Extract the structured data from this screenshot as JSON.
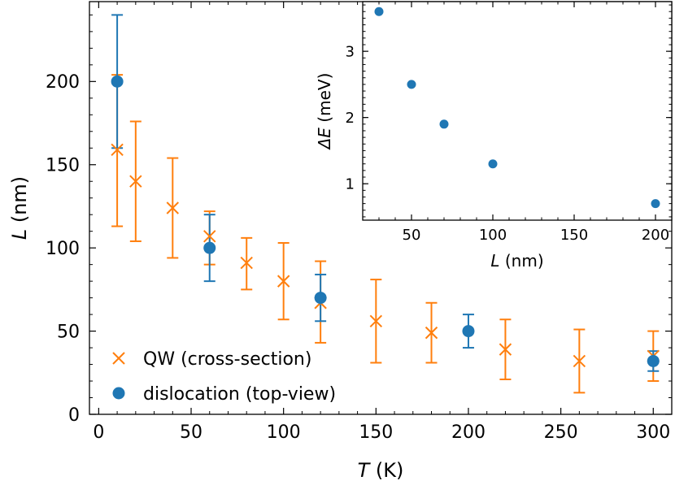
{
  "chart_data": [
    {
      "type": "scatter",
      "xlabel": {
        "symbol": "T",
        "unit": "(K)"
      },
      "ylabel": {
        "symbol": "L",
        "unit": "(nm)"
      },
      "xlim": [
        -5,
        310
      ],
      "ylim": [
        0,
        248
      ],
      "xticks": [
        0,
        50,
        100,
        150,
        200,
        250,
        300
      ],
      "yticks": [
        0,
        50,
        100,
        150,
        200
      ],
      "legend_position": "lower-left",
      "series": [
        {
          "name": "QW (cross-section)",
          "marker": "x",
          "color": "#ff7f0e",
          "points": [
            {
              "x": 10,
              "y": 159,
              "err_low": 113,
              "err_high": 204
            },
            {
              "x": 20,
              "y": 140,
              "err_low": 104,
              "err_high": 176
            },
            {
              "x": 40,
              "y": 124,
              "err_low": 94,
              "err_high": 154
            },
            {
              "x": 60,
              "y": 107,
              "err_low": 90,
              "err_high": 122
            },
            {
              "x": 80,
              "y": 91,
              "err_low": 75,
              "err_high": 106
            },
            {
              "x": 100,
              "y": 80,
              "err_low": 57,
              "err_high": 103
            },
            {
              "x": 120,
              "y": 67,
              "err_low": 43,
              "err_high": 92
            },
            {
              "x": 150,
              "y": 56,
              "err_low": 31,
              "err_high": 81
            },
            {
              "x": 180,
              "y": 49,
              "err_low": 31,
              "err_high": 67
            },
            {
              "x": 220,
              "y": 39,
              "err_low": 21,
              "err_high": 57
            },
            {
              "x": 260,
              "y": 32,
              "err_low": 13,
              "err_high": 51
            },
            {
              "x": 300,
              "y": 35,
              "err_low": 20,
              "err_high": 50
            }
          ]
        },
        {
          "name": "dislocation (top-view)",
          "marker": "o",
          "color": "#1f77b4",
          "points": [
            {
              "x": 10,
              "y": 200,
              "err_low": 160,
              "err_high": 240
            },
            {
              "x": 60,
              "y": 100,
              "err_low": 80,
              "err_high": 120
            },
            {
              "x": 120,
              "y": 70,
              "err_low": 56,
              "err_high": 84
            },
            {
              "x": 200,
              "y": 50,
              "err_low": 40,
              "err_high": 60
            },
            {
              "x": 300,
              "y": 32,
              "err_low": 26,
              "err_high": 38
            }
          ]
        }
      ]
    },
    {
      "type": "scatter",
      "role": "inset",
      "xlabel": {
        "symbol": "L",
        "unit": "(nm)"
      },
      "ylabel": {
        "symbol": "ΔE",
        "unit": "(meV)"
      },
      "xlim": [
        20,
        210
      ],
      "ylim": [
        0.45,
        3.75
      ],
      "xticks": [
        50,
        100,
        150,
        200
      ],
      "yticks": [
        1,
        2,
        3
      ],
      "series": [
        {
          "marker": "o",
          "color": "#1f77b4",
          "points": [
            {
              "x": 30,
              "y": 3.6
            },
            {
              "x": 50,
              "y": 2.5
            },
            {
              "x": 70,
              "y": 1.9
            },
            {
              "x": 100,
              "y": 1.3
            },
            {
              "x": 200,
              "y": 0.7
            }
          ]
        }
      ]
    }
  ]
}
